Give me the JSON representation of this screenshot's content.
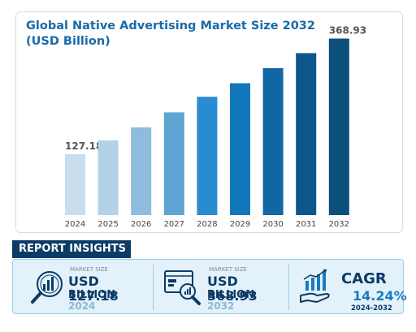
{
  "chart_data": {
    "type": "bar",
    "title": "Global Native Advertising Market Size 2032 (USD Billion)",
    "categories": [
      "2024",
      "2025",
      "2026",
      "2027",
      "2028",
      "2029",
      "2030",
      "2031",
      "2032"
    ],
    "values": [
      127.18,
      156.1,
      183.4,
      214.7,
      247.3,
      275.6,
      307.2,
      338.5,
      368.93
    ],
    "data_labels": [
      "127.18",
      "",
      "",
      "",
      "",
      "",
      "",
      "",
      "368.93"
    ],
    "bar_colors": [
      "#c7deec",
      "#b2d2e7",
      "#8dbcdc",
      "#5ea5d3",
      "#2a8cd0",
      "#1377bb",
      "#0f67a4",
      "#0d568a",
      "#0c4f7c"
    ],
    "ylim": [
      0,
      380
    ],
    "grid": false,
    "legend": "none"
  },
  "insights": {
    "heading": "REPORT INSIGHTS",
    "left": {
      "icon": "chart-magnifier-icon",
      "label": "MARKET SIZE",
      "value": "USD 127.18",
      "unit": "BILLION",
      "year": "2024"
    },
    "middle": {
      "icon": "dashboard-magnifier-icon",
      "label": "MARKET SIZE",
      "value": "USD 368.93",
      "unit": "BILLION",
      "year": "2032"
    },
    "right": {
      "icon": "growth-hand-icon",
      "title": "CAGR",
      "value": "14.24%",
      "years": "2024-2032"
    }
  },
  "colors": {
    "title": "#1a6aa8",
    "navy": "#0c3b66",
    "accent": "#1a7ac0",
    "panel_bg": "#e3f1fa"
  }
}
